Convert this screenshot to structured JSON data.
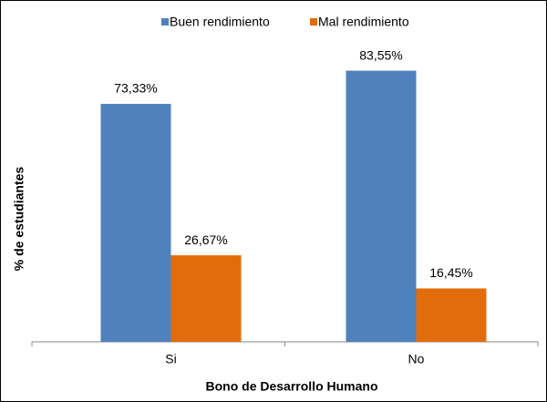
{
  "chart_data": {
    "type": "bar",
    "categories": [
      "Si",
      "No"
    ],
    "series": [
      {
        "name": "Buen rendimiento",
        "color": "#4f81bd",
        "values": [
          73.33,
          83.55
        ],
        "value_labels": [
          "73,33%",
          "83,55%"
        ]
      },
      {
        "name": "Mal rendimiento",
        "color": "#e36c0a",
        "values": [
          26.67,
          16.45
        ],
        "value_labels": [
          "26,67%",
          "16,45%"
        ]
      }
    ],
    "ylim": [
      0,
      100
    ],
    "y_label": "% de estudiantes",
    "x_label": "Bono de Desarrollo Humano",
    "legend": "top"
  }
}
